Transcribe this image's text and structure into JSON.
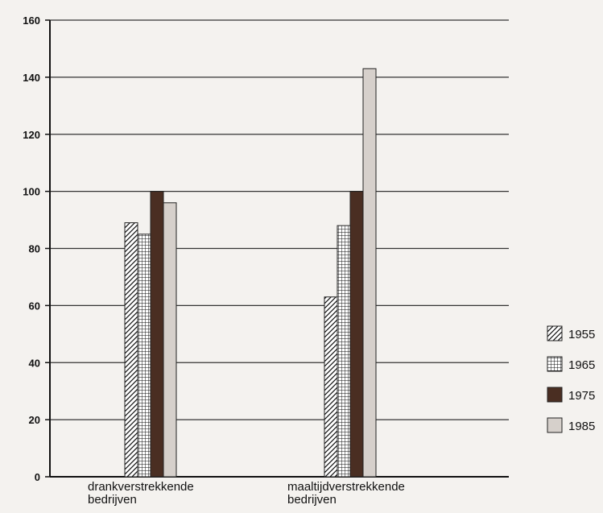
{
  "chart_data": {
    "type": "bar",
    "categories": [
      [
        "drankverstrekkende",
        "bedrijven"
      ],
      [
        "maaltijdverstrekkende",
        "bedrijven"
      ]
    ],
    "series": [
      {
        "name": "1955",
        "values": [
          89,
          63
        ],
        "pattern": "diagonal"
      },
      {
        "name": "1965",
        "values": [
          85,
          88
        ],
        "pattern": "grid"
      },
      {
        "name": "1975",
        "values": [
          100,
          100
        ],
        "pattern": "dark",
        "color": "#4a2e22"
      },
      {
        "name": "1985",
        "values": [
          96,
          143
        ],
        "pattern": "light",
        "color": "#d6d0cb"
      }
    ],
    "ylim": [
      0,
      160
    ],
    "yticks": [
      0,
      20,
      40,
      60,
      80,
      100,
      120,
      140,
      160
    ],
    "grid": true,
    "legend_position": "right"
  }
}
